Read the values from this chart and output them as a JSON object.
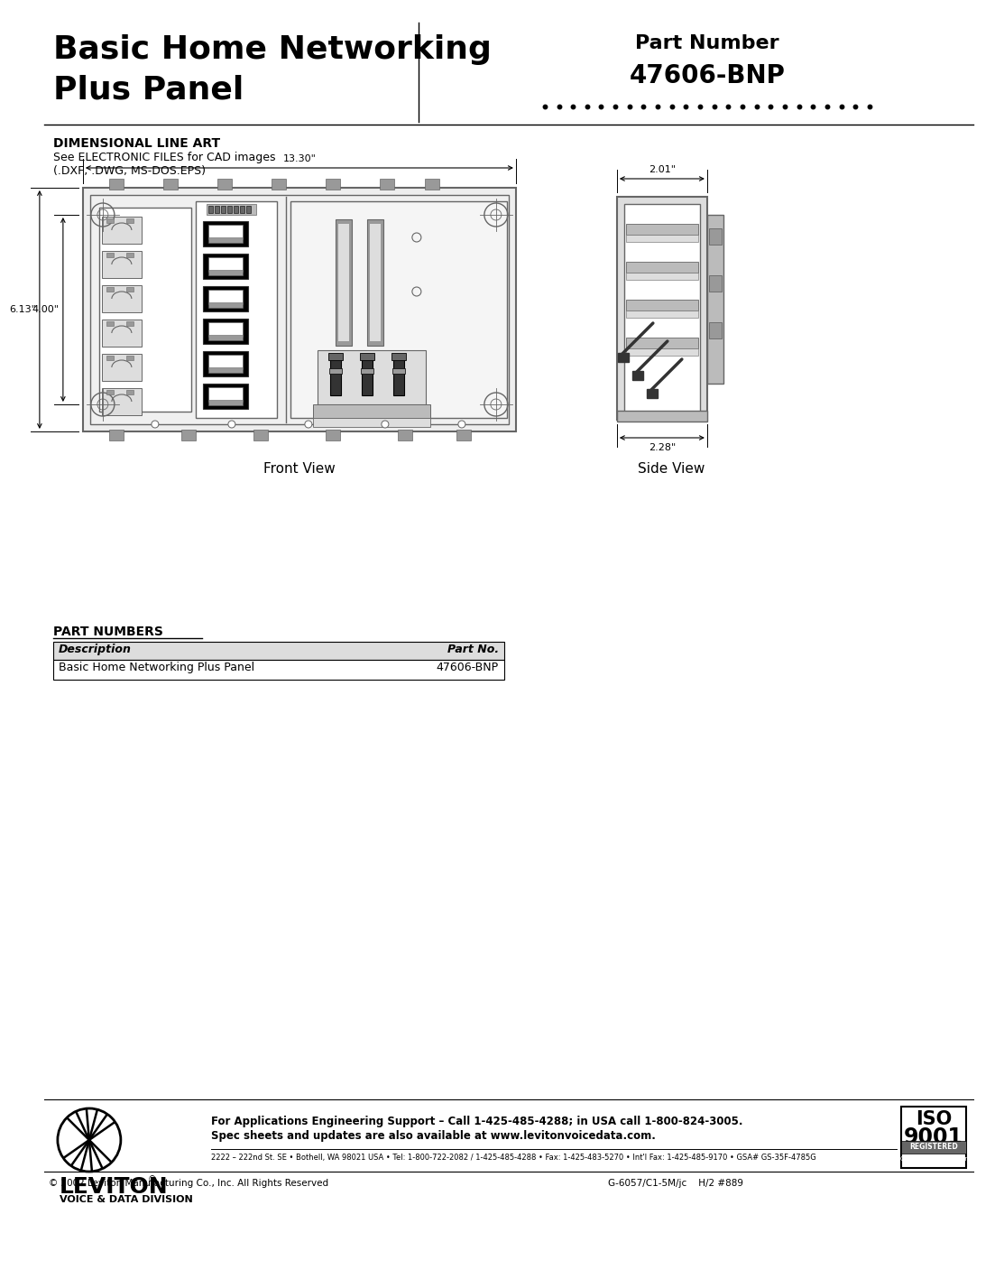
{
  "title_line1": "Basic Home Networking",
  "title_line2": "Plus Panel",
  "part_number_label": "Part Number",
  "part_number": "47606-BNP",
  "section_title": "DIMENSIONAL LINE ART",
  "section_subtitle1": "See ELECTRONIC FILES for CAD images",
  "section_subtitle2": "(.DXF, .DWG, MS-DOS.EPS)",
  "dim_front_width": "13.30\"",
  "dim_front_height1": "6.13\"",
  "dim_front_height2": "4.00\"",
  "dim_side_width": "2.28\"",
  "dim_side_height": "2.01\"",
  "front_view_label": "Front View",
  "side_view_label": "Side View",
  "part_numbers_title": "PART NUMBERS",
  "table_header_desc": "Description",
  "table_header_part": "Part No.",
  "table_row_desc": "Basic Home Networking Plus Panel",
  "table_row_part": "47606-BNP",
  "footer_line1": "For Applications Engineering Support – Call 1-425-485-4288; in USA call 1-800-824-3005.",
  "footer_line2": "Spec sheets and updates are also available at www.levitonvoicedata.com.",
  "footer_address": "2222 – 222nd St. SE • Bothell, WA 98021 USA • Tel: 1-800-722-2082 / 1-425-485-4288 • Fax: 1-425-483-5270 • Int'l Fax: 1-425-485-9170 • GSA# GS-35F-4785G",
  "copyright": "© 2002 Leviton Manufacturing Co., Inc. All Rights Reserved",
  "doc_number": "G-6057/C1-5M/jc    H/2 #889",
  "bg_color": "#ffffff",
  "text_color": "#000000"
}
